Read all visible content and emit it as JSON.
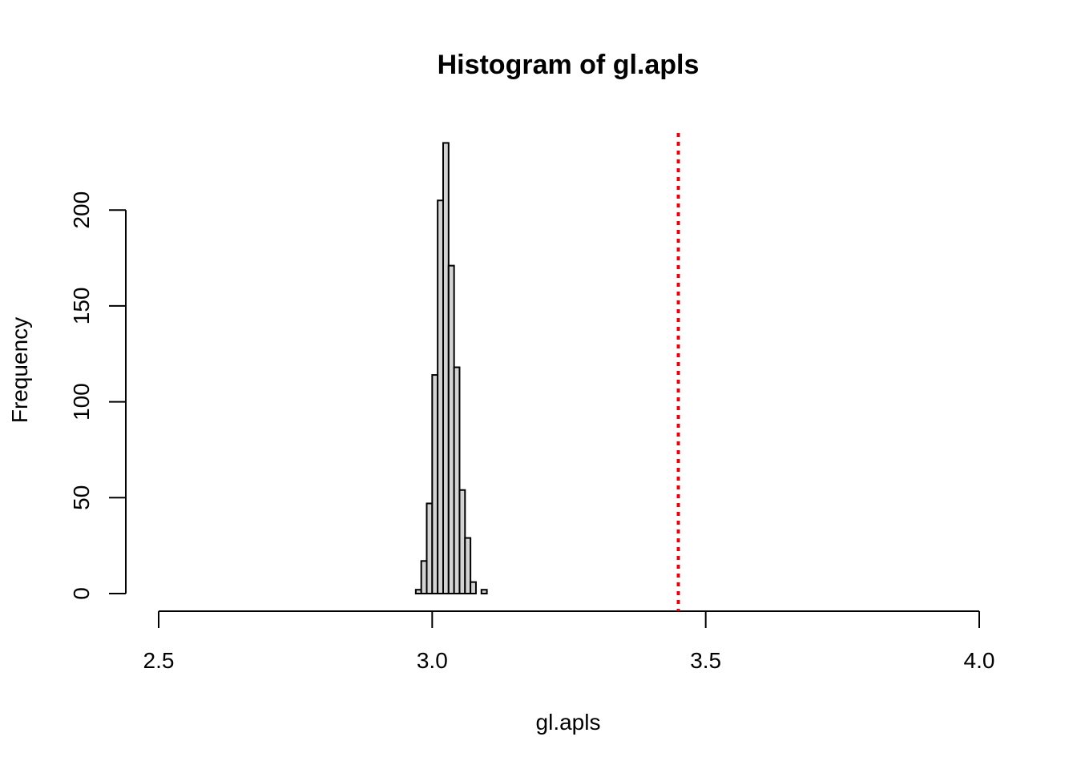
{
  "chart_data": {
    "type": "histogram",
    "title": "Histogram of gl.apls",
    "xlabel": "gl.apls",
    "ylabel": "Frequency",
    "xlim": [
      2.5,
      4.0
    ],
    "ylim": [
      0,
      235
    ],
    "x_ticks": [
      "2.5",
      "3.0",
      "3.5",
      "4.0"
    ],
    "x_tick_values": [
      2.5,
      3.0,
      3.5,
      4.0
    ],
    "y_ticks": [
      "0",
      "50",
      "100",
      "150",
      "200"
    ],
    "y_tick_values": [
      0,
      50,
      100,
      150,
      200
    ],
    "bin_width": 0.01,
    "bins": [
      {
        "start": 2.97,
        "end": 2.98,
        "count": 2
      },
      {
        "start": 2.98,
        "end": 2.99,
        "count": 17
      },
      {
        "start": 2.99,
        "end": 3.0,
        "count": 47
      },
      {
        "start": 3.0,
        "end": 3.01,
        "count": 114
      },
      {
        "start": 3.01,
        "end": 3.02,
        "count": 205
      },
      {
        "start": 3.02,
        "end": 3.03,
        "count": 235
      },
      {
        "start": 3.03,
        "end": 3.04,
        "count": 171
      },
      {
        "start": 3.04,
        "end": 3.05,
        "count": 118
      },
      {
        "start": 3.05,
        "end": 3.06,
        "count": 54
      },
      {
        "start": 3.06,
        "end": 3.07,
        "count": 29
      },
      {
        "start": 3.07,
        "end": 3.08,
        "count": 6
      },
      {
        "start": 3.08,
        "end": 3.09,
        "count": 0
      },
      {
        "start": 3.09,
        "end": 3.1,
        "count": 2
      }
    ],
    "reference_line": {
      "x": 3.45,
      "color": "#e8000b",
      "style": "dotted"
    },
    "bar_fill": "#d3d3d3",
    "bar_stroke": "#000000",
    "grid": false,
    "legend": "none"
  }
}
